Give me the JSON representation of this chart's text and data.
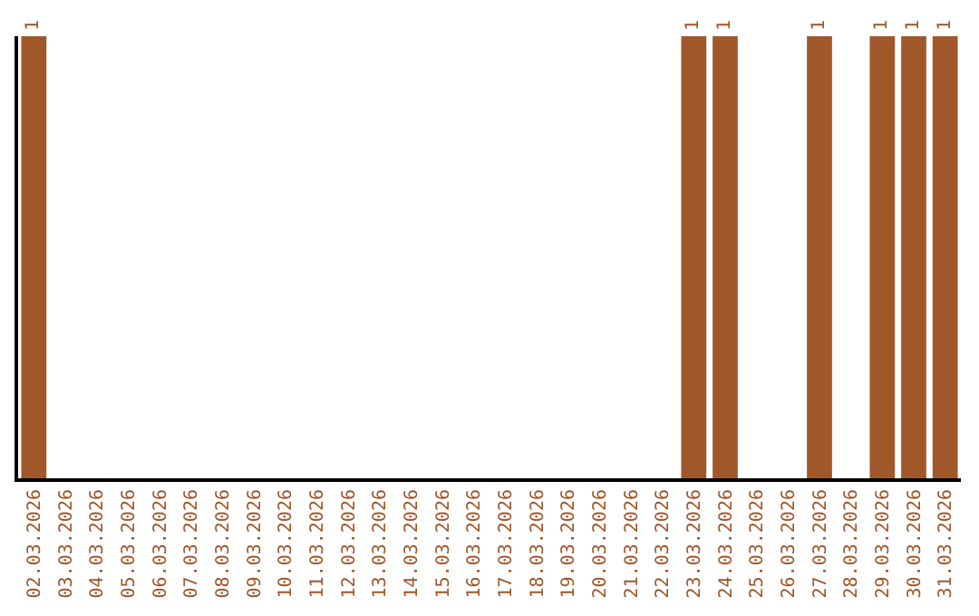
{
  "chart_data": {
    "type": "bar",
    "categories": [
      "02.03.2026",
      "03.03.2026",
      "04.03.2026",
      "05.03.2026",
      "06.03.2026",
      "07.03.2026",
      "08.03.2026",
      "09.03.2026",
      "10.03.2026",
      "11.03.2026",
      "12.03.2026",
      "13.03.2026",
      "14.03.2026",
      "15.03.2026",
      "16.03.2026",
      "17.03.2026",
      "18.03.2026",
      "19.03.2026",
      "20.03.2026",
      "21.03.2026",
      "22.03.2026",
      "23.03.2026",
      "24.03.2026",
      "25.03.2026",
      "26.03.2026",
      "27.03.2026",
      "28.03.2026",
      "29.03.2026",
      "30.03.2026",
      "31.03.2026"
    ],
    "values": [
      1,
      0,
      0,
      0,
      0,
      0,
      0,
      0,
      0,
      0,
      0,
      0,
      0,
      0,
      0,
      0,
      0,
      0,
      0,
      0,
      0,
      1,
      1,
      0,
      0,
      1,
      0,
      1,
      1,
      1
    ],
    "value_labels": [
      "1",
      null,
      null,
      null,
      null,
      null,
      null,
      null,
      null,
      null,
      null,
      null,
      null,
      null,
      null,
      null,
      null,
      null,
      null,
      null,
      null,
      "1",
      "1",
      null,
      null,
      "1",
      null,
      "1",
      "1",
      "1"
    ],
    "color": "#a0572a"
  }
}
